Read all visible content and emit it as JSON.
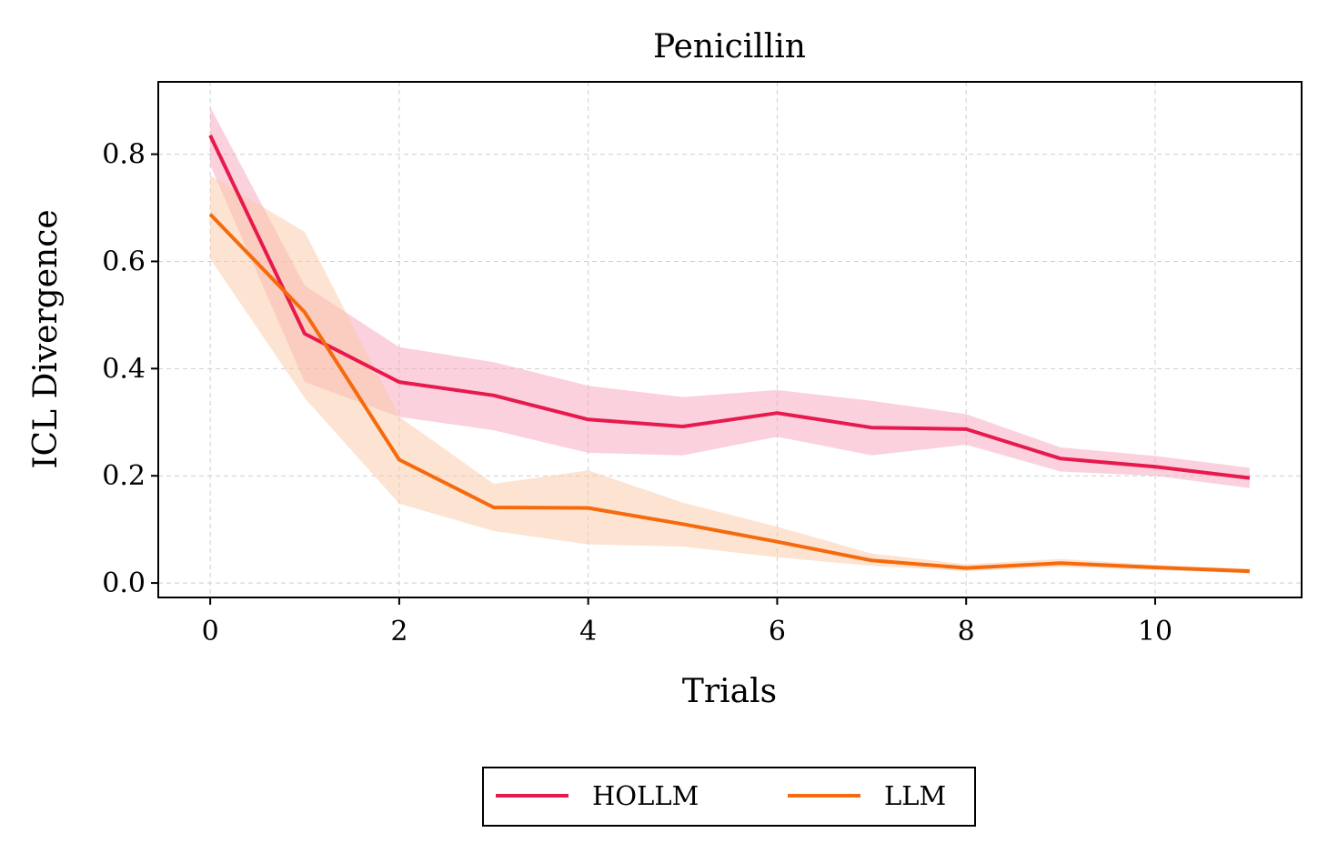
{
  "chart_data": {
    "type": "line",
    "title": "Penicillin",
    "xlabel": "Trials",
    "ylabel": "ICL Divergence",
    "xlim": [
      -0.55,
      11.55
    ],
    "ylim": [
      -0.027,
      0.935
    ],
    "xticks": [
      0,
      2,
      4,
      6,
      8,
      10
    ],
    "xtick_labels": [
      "0",
      "2",
      "4",
      "6",
      "8",
      "10"
    ],
    "yticks": [
      0.0,
      0.2,
      0.4,
      0.6,
      0.8
    ],
    "ytick_labels": [
      "0.0",
      "0.2",
      "0.4",
      "0.6",
      "0.8"
    ],
    "grid": true,
    "legend_position": "bottom-center, outside",
    "x": [
      0,
      1,
      2,
      3,
      4,
      5,
      6,
      7,
      8,
      9,
      10,
      11
    ],
    "series": [
      {
        "name": "HOLLM",
        "color": "#e8194c",
        "band_color": "#f5a3ba",
        "values": [
          0.835,
          0.465,
          0.375,
          0.35,
          0.305,
          0.292,
          0.317,
          0.29,
          0.287,
          0.232,
          0.217,
          0.196
        ],
        "lower": [
          0.78,
          0.375,
          0.31,
          0.285,
          0.243,
          0.238,
          0.273,
          0.238,
          0.258,
          0.208,
          0.2,
          0.177
        ],
        "upper": [
          0.888,
          0.555,
          0.44,
          0.412,
          0.368,
          0.347,
          0.36,
          0.34,
          0.315,
          0.253,
          0.237,
          0.215
        ]
      },
      {
        "name": "LLM",
        "color": "#f56a0c",
        "band_color": "#fbc8a3",
        "values": [
          0.688,
          0.505,
          0.23,
          0.141,
          0.14,
          0.11,
          0.077,
          0.042,
          0.028,
          0.037,
          0.029,
          0.022
        ],
        "lower": [
          0.605,
          0.345,
          0.148,
          0.097,
          0.072,
          0.068,
          0.048,
          0.032,
          0.022,
          0.03,
          0.024,
          0.018
        ],
        "upper": [
          0.76,
          0.655,
          0.31,
          0.185,
          0.21,
          0.15,
          0.105,
          0.055,
          0.035,
          0.045,
          0.034,
          0.027
        ]
      }
    ]
  }
}
